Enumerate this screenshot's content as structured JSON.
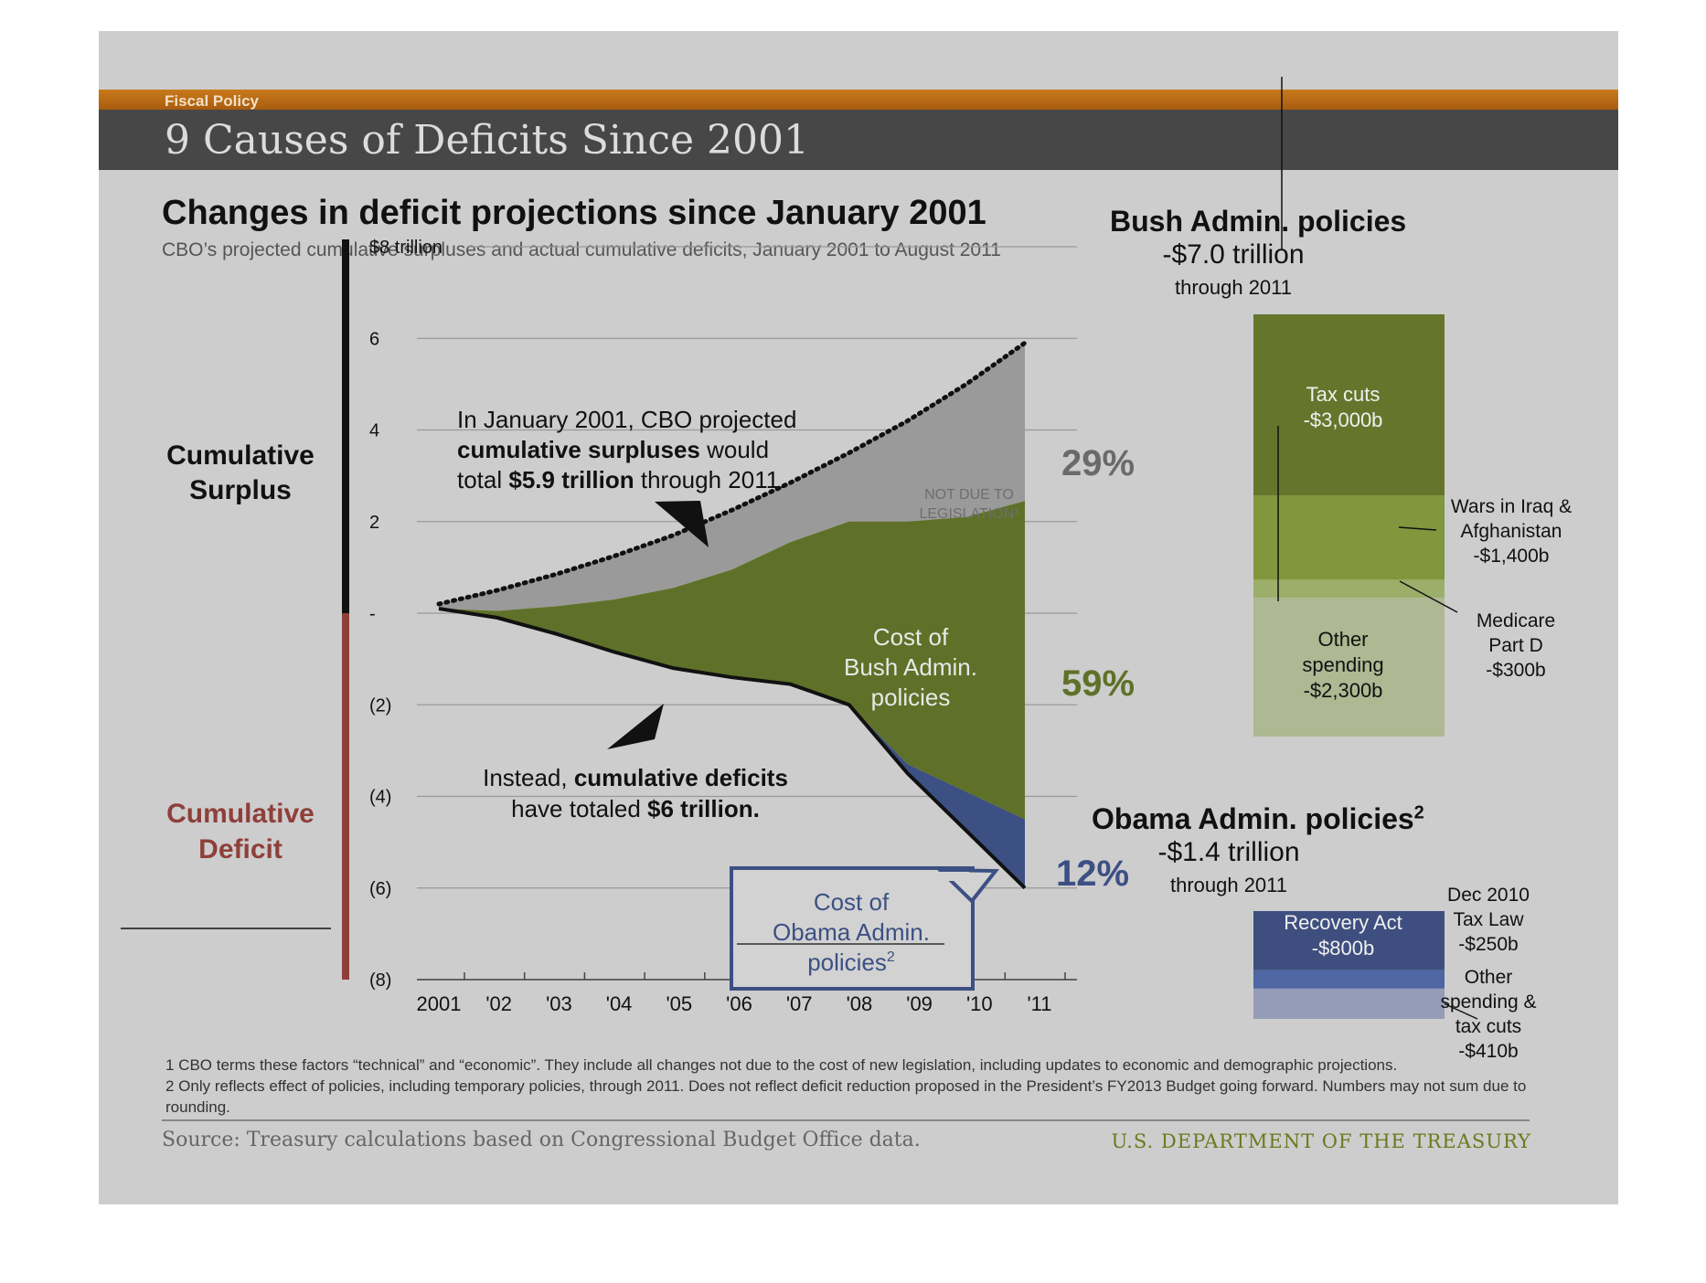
{
  "header": {
    "section": "Fiscal Policy",
    "title": "9 Causes of Deficits Since 2001"
  },
  "chart_data": [
    {
      "type": "area",
      "title": "Changes in deficit projections since January 2001",
      "subtitle": "CBO’s projected cumulative surpluses and actual cumulative deficits, January 2001 to August 2011",
      "x": [
        "2001",
        "'02",
        "'03",
        "'04",
        "'05",
        "'06",
        "'07",
        "'08",
        "'09",
        "'10",
        "'11"
      ],
      "ylim": [
        -8,
        8
      ],
      "yticks": [
        8,
        6,
        4,
        2,
        0,
        -2,
        -4,
        -6,
        -8
      ],
      "ytick_labels": [
        "$8 trillion",
        "6",
        "4",
        "2",
        "-",
        "(2)",
        "(4)",
        "(6)",
        "(8)"
      ],
      "grid": true,
      "y_side_labels": {
        "surplus_line1": "Cumulative",
        "surplus_line2": "Surplus",
        "deficit_line1": "Cumulative",
        "deficit_line2": "Deficit"
      },
      "series": [
        {
          "key": "cbo_projected",
          "values": [
            0.2,
            0.5,
            0.85,
            1.25,
            1.7,
            2.25,
            2.85,
            3.5,
            4.2,
            5.0,
            5.9
          ]
        },
        {
          "key": "not_due_to_legislation_boundary",
          "values": [
            0.1,
            0.05,
            0.15,
            0.3,
            0.55,
            0.95,
            1.55,
            2.0,
            2.0,
            2.1,
            2.45
          ]
        },
        {
          "key": "bush_policies_lower",
          "values": [
            0.1,
            -0.1,
            -0.4,
            -0.85,
            -1.2,
            -1.4,
            -1.55,
            -2.0,
            -3.3,
            -3.9,
            -4.5
          ]
        },
        {
          "key": "actual_cumulative",
          "values": [
            0.1,
            -0.1,
            -0.45,
            -0.85,
            -1.2,
            -1.4,
            -1.55,
            -2.0,
            -3.5,
            -4.75,
            -6.0
          ]
        }
      ],
      "colors": {
        "not_due": "#9a9a9a",
        "bush": "#5f7128",
        "obama": "#3c5083"
      },
      "labels": {
        "not_due_line1": "NOT DUE TO",
        "not_due_line2": "LEGISLATION¹",
        "bush_cost_line1": "Cost of",
        "bush_cost_line2": "Bush Admin.",
        "bush_cost_line3": "policies",
        "obama_cost_line1": "Cost of",
        "obama_cost_line2": "Obama Admin.",
        "obama_cost_line3": "policies",
        "obama_cost_sup": "2",
        "pct_not_due": "29%",
        "pct_bush": "59%",
        "pct_obama": "12%",
        "surplus_note_1a": "In January 2001, CBO projected",
        "surplus_note_2a": "cumulative surpluses",
        "surplus_note_2b": " would",
        "surplus_note_3a": "total ",
        "surplus_note_3b": "$5.9 trillion",
        "surplus_note_3c": " through 2011.",
        "deficit_note_1a": "Instead, ",
        "deficit_note_1b": "cumulative deficits",
        "deficit_note_2a": "have totaled ",
        "deficit_note_2b": "$6 trillion."
      }
    },
    {
      "type": "bar",
      "title": "Bush Admin. policies",
      "total": "-$7.0 trillion",
      "period": "through 2011",
      "unit": "billions",
      "segments": [
        {
          "name": "Tax cuts",
          "value": -3000,
          "label": "-$3,000b",
          "color": "#65762c"
        },
        {
          "name": "Wars in Iraq  & Afghanistan",
          "value": -1400,
          "label": "-$1,400b",
          "color": "#82963e"
        },
        {
          "name": "Medicare Part D",
          "value": -300,
          "label": "-$300b",
          "color": "#9caf6a"
        },
        {
          "name": "Other spending",
          "value": -2300,
          "label": "-$2,300b",
          "color": "#aeb892"
        }
      ]
    },
    {
      "type": "bar",
      "title": "Obama Admin. policies",
      "title_sup": "2",
      "total": "-$1.4 trillion",
      "period": "through 2011",
      "unit": "billions",
      "segments": [
        {
          "name": "Recovery Act",
          "value": -800,
          "label": "-$800b",
          "color": "#3e4f7f"
        },
        {
          "name": "Dec 2010 Tax Law",
          "value": -250,
          "label": "-$250b",
          "color": "#4e66a2"
        },
        {
          "name": "Other spending & tax cuts",
          "value": -410,
          "label": "-$410b",
          "color": "#959cb8"
        }
      ]
    }
  ],
  "bush_panel": {
    "tax_line1": "Tax cuts",
    "tax_line2": "-$3,000b",
    "wars_line1": "Wars in Iraq  &",
    "wars_line2": "Afghanistan",
    "wars_line3": "-$1,400b",
    "medicare_line1": "Medicare",
    "medicare_line2": "Part D",
    "medicare_line3": "-$300b",
    "other_line1": "Other",
    "other_line2": "spending",
    "other_line3": "-$2,300b"
  },
  "obama_panel": {
    "recovery_line1": "Recovery Act",
    "recovery_line2": "-$800b",
    "tax_line1": "Dec 2010",
    "tax_line2": "Tax Law",
    "tax_line3": "-$250b",
    "other_line1": "Other",
    "other_line2": "spending &",
    "other_line3": "tax cuts",
    "other_line4": "-$410b"
  },
  "footnotes": {
    "note1": "1 CBO terms these factors “technical” and “economic”. They include all changes not due to the cost of new legislation, including updates to economic and demographic projections.",
    "note2": "2 Only reflects effect of policies, including temporary policies, through 2011. Does not reflect deficit reduction proposed in the President’s FY2013 Budget going forward. Numbers may not sum due to rounding."
  },
  "source": "Source: Treasury calculations based on Congressional Budget Office data.",
  "agency": "U.S. DEPARTMENT OF THE TREASURY"
}
